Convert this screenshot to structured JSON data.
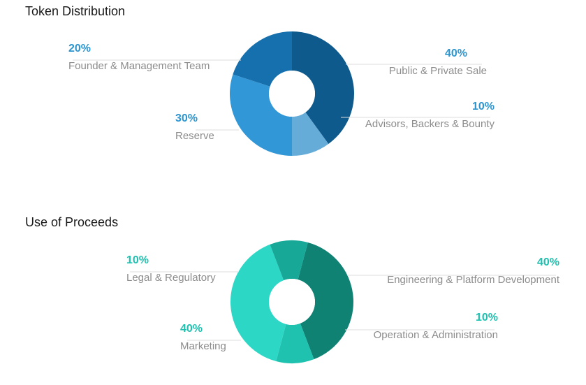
{
  "sections": [
    {
      "title": "Token Distribution"
    },
    {
      "title": "Use of Proceeds"
    }
  ],
  "chart_data": [
    {
      "type": "pie",
      "title": "Token Distribution",
      "slices": [
        {
          "label": "Public & Private Sale",
          "value": 40,
          "pct_text": "40%",
          "color": "#0f5a8c"
        },
        {
          "label": "Advisors, Backers & Bounty",
          "value": 10,
          "pct_text": "10%",
          "color": "#66acd9"
        },
        {
          "label": "Reserve",
          "value": 30,
          "pct_text": "30%",
          "color": "#3297d6"
        },
        {
          "label": "Founder & Management Team",
          "value": 20,
          "pct_text": "20%",
          "color": "#1670ad"
        }
      ],
      "label_color": "#2c95d0"
    },
    {
      "type": "pie",
      "title": "Use of Proceeds",
      "slices": [
        {
          "label": "Engineering & Platform Development",
          "value": 40,
          "pct_text": "40%",
          "color": "#0f8274"
        },
        {
          "label": "Operation & Administration",
          "value": 10,
          "pct_text": "10%",
          "color": "#1fc2af"
        },
        {
          "label": "Marketing",
          "value": 40,
          "pct_text": "40%",
          "color": "#2cd7c6"
        },
        {
          "label": "Legal & Regulatory",
          "value": 10,
          "pct_text": "10%",
          "color": "#17a897"
        }
      ],
      "label_color": "#20c0b0"
    }
  ]
}
